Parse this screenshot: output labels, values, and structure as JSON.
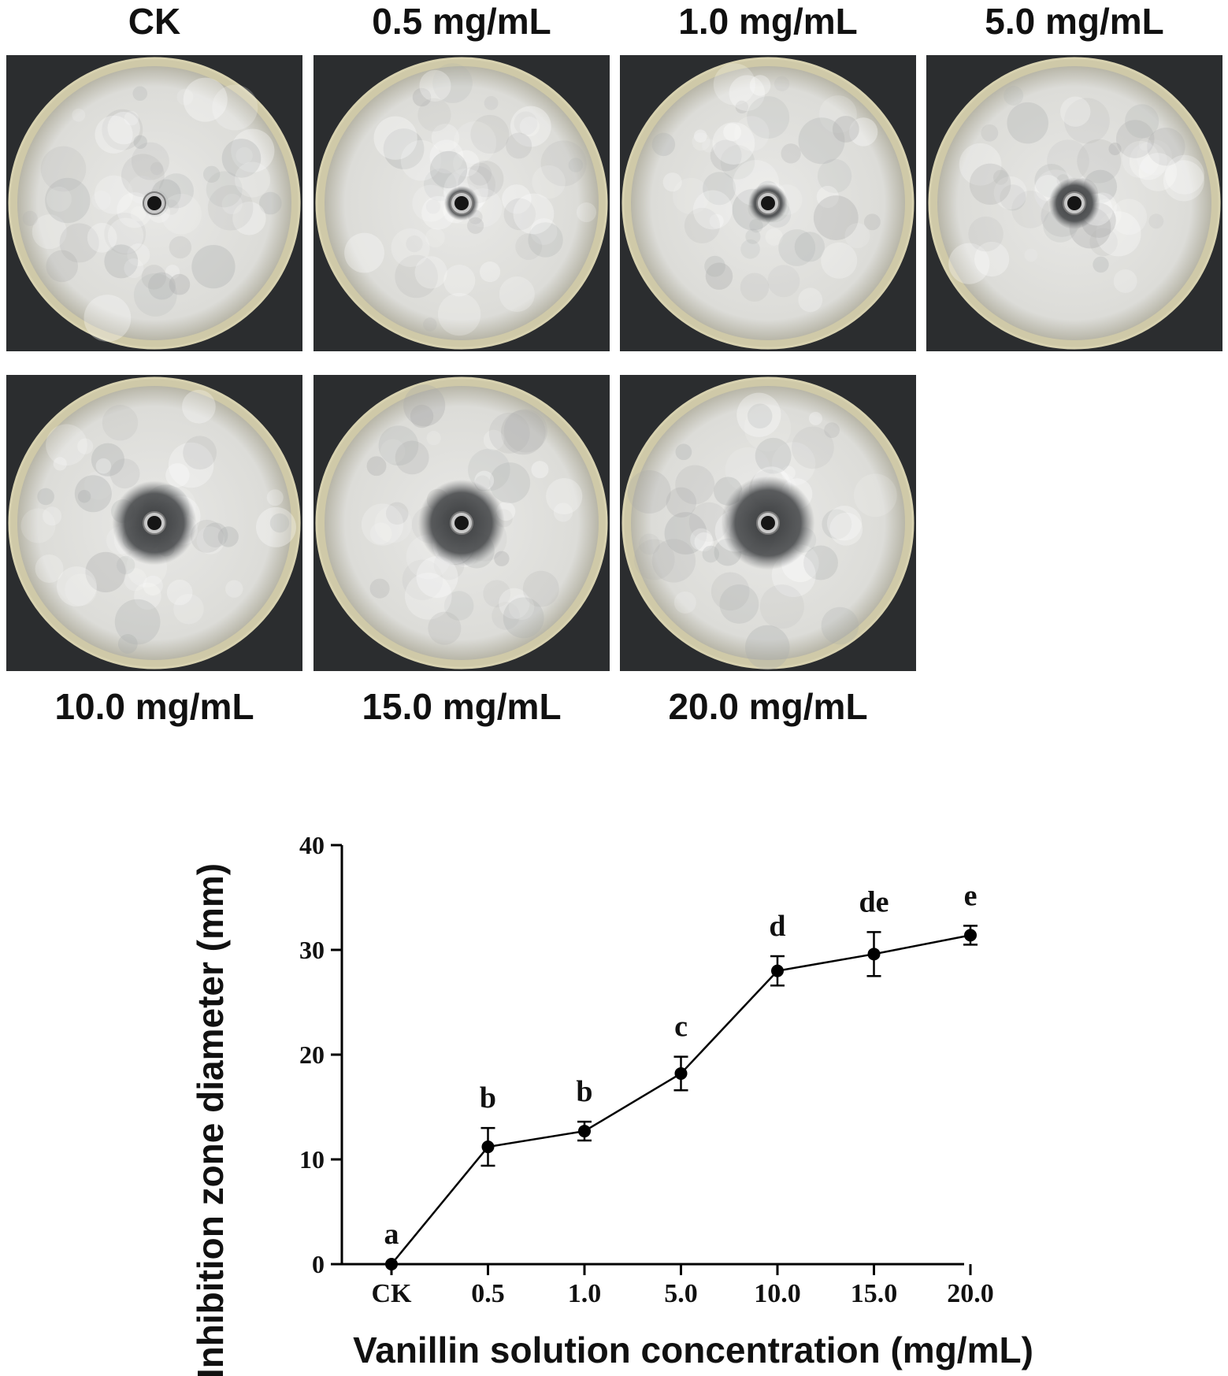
{
  "panels": [
    {
      "label": "CK"
    },
    {
      "label": "0.5 mg/mL"
    },
    {
      "label": "1.0 mg/mL"
    },
    {
      "label": "5.0 mg/mL"
    },
    {
      "label": "10.0 mg/mL"
    },
    {
      "label": "15.0 mg/mL"
    },
    {
      "label": "20.0 mg/mL"
    }
  ],
  "chart_data": {
    "type": "line",
    "xlabel": "Vanillin solution concentration (mg/mL)",
    "ylabel": "Inhibition zone diameter (mm)",
    "categories": [
      "CK",
      "0.5",
      "1.0",
      "5.0",
      "10.0",
      "15.0",
      "20.0"
    ],
    "values": [
      0,
      11.2,
      12.7,
      18.2,
      28.0,
      29.6,
      31.4
    ],
    "errors": [
      0,
      1.8,
      0.9,
      1.6,
      1.4,
      2.1,
      0.9
    ],
    "significance": [
      "a",
      "b",
      "b",
      "c",
      "d",
      "de",
      "e"
    ],
    "ylim": [
      0,
      40
    ],
    "yticks": [
      0,
      10,
      20,
      30,
      40
    ],
    "grid": false,
    "marker": "filled-circle",
    "line_color": "#000000"
  }
}
